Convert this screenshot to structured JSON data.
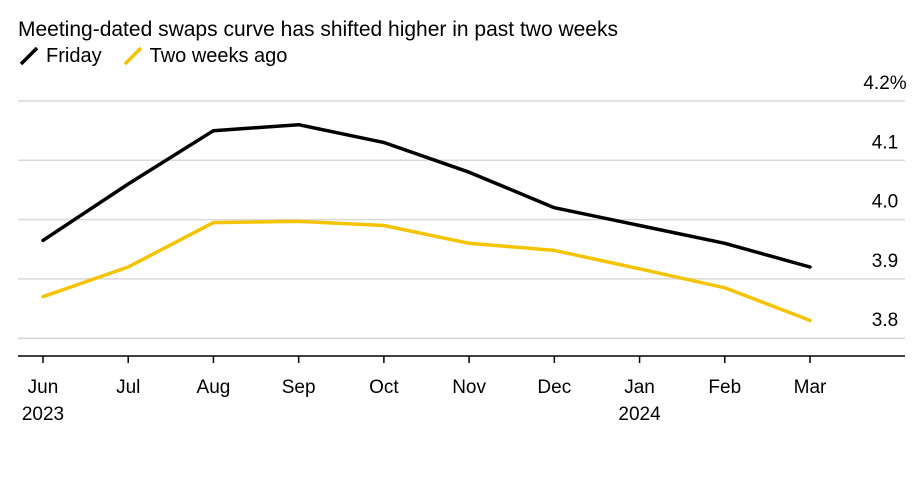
{
  "chart_data": {
    "type": "line",
    "title": "Meeting-dated swaps curve has shifted higher in past two weeks",
    "xlabel": "",
    "ylabel": "",
    "categories": [
      "Jun",
      "Jul",
      "Aug",
      "Sep",
      "Oct",
      "Nov",
      "Dec",
      "Jan",
      "Feb",
      "Mar"
    ],
    "year_labels": [
      {
        "at": "Jun",
        "text": "2023"
      },
      {
        "at": "Jan",
        "text": "2024"
      }
    ],
    "series": [
      {
        "name": "Friday",
        "color": "#000000",
        "values": [
          3.965,
          4.06,
          4.15,
          4.16,
          4.13,
          4.08,
          4.02,
          3.99,
          3.96,
          3.92
        ]
      },
      {
        "name": "Two weeks ago",
        "color": "#f5c400",
        "values": [
          3.87,
          3.92,
          3.995,
          3.997,
          3.99,
          3.96,
          3.948,
          3.917,
          3.885,
          3.83
        ]
      }
    ],
    "yticks": [
      {
        "value": 4.2,
        "label": "4.2%"
      },
      {
        "value": 4.1,
        "label": "4.1"
      },
      {
        "value": 4.0,
        "label": "4.0"
      },
      {
        "value": 3.9,
        "label": "3.9"
      },
      {
        "value": 3.8,
        "label": "3.8"
      }
    ],
    "ylim": [
      3.77,
      4.2
    ],
    "grid": true,
    "legend_position": "top-left",
    "y_axis_side": "right"
  }
}
